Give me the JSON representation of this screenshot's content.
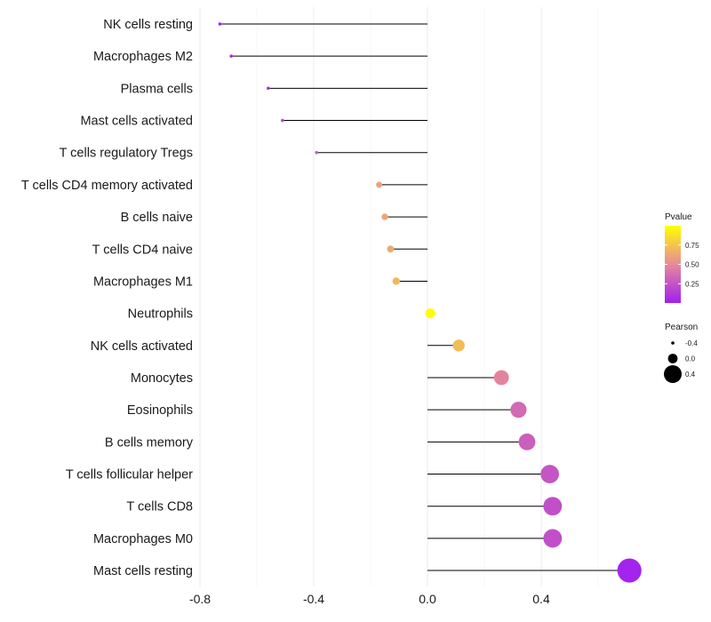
{
  "chart_data": {
    "type": "lollipop",
    "title": "",
    "xlabel": "",
    "ylabel": "",
    "xlim": [
      -0.8,
      0.75
    ],
    "x_ticks": [
      -0.8,
      -0.4,
      0.0,
      0.4
    ],
    "x_tick_labels": [
      "-0.8",
      "-0.4",
      "0.0",
      "0.4"
    ],
    "grid": true,
    "categories": [
      "NK cells resting",
      "Macrophages M2",
      "Plasma cells",
      "Mast cells activated",
      "T cells regulatory  Tregs ",
      "T cells CD4 memory activated",
      "B cells naive",
      "T cells CD4 naive",
      "Macrophages M1",
      "Neutrophils",
      "NK cells activated",
      "Monocytes",
      "Eosinophils",
      "B cells memory",
      "T cells follicular helper",
      "T cells CD8",
      "Macrophages M0",
      "Mast cells resting"
    ],
    "pearson": [
      -0.73,
      -0.69,
      -0.56,
      -0.51,
      -0.39,
      -0.17,
      -0.15,
      -0.13,
      -0.11,
      0.01,
      0.11,
      0.26,
      0.32,
      0.35,
      0.43,
      0.44,
      0.44,
      0.71
    ],
    "pvalue": [
      0.02,
      0.05,
      0.1,
      0.18,
      0.28,
      0.6,
      0.62,
      0.64,
      0.7,
      0.99,
      0.72,
      0.47,
      0.35,
      0.3,
      0.25,
      0.23,
      0.23,
      0.02
    ],
    "legend": {
      "position": "right",
      "color": {
        "title": "Pvalue",
        "ticks": [
          "0.75",
          "0.50",
          "0.25"
        ],
        "tick_values": [
          0.75,
          0.5,
          0.25
        ],
        "range": [
          0.0,
          1.0
        ],
        "low_color": "#a020f0",
        "mid_color": "#e8899a",
        "high_color": "#ffff00"
      },
      "size": {
        "title": "Pearson",
        "labels": [
          "-0.4",
          "0.0",
          "0.4"
        ],
        "values": [
          -0.4,
          0.0,
          0.4
        ]
      }
    }
  }
}
